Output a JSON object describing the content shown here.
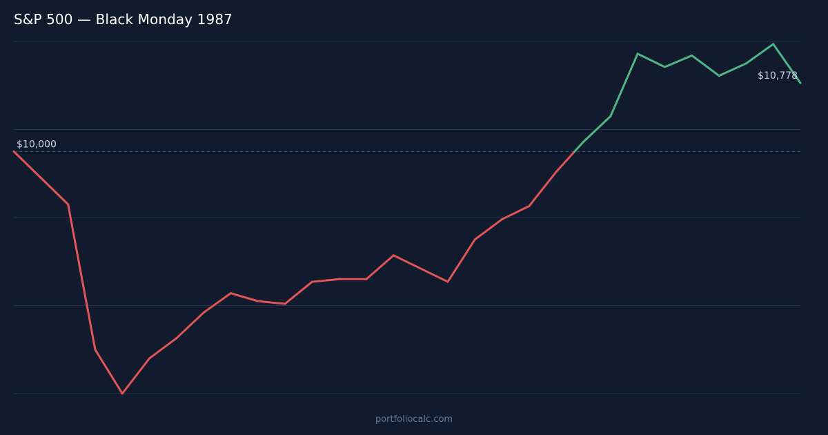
{
  "header": {
    "title": "S&P 500 — Black Monday 1987"
  },
  "footer": {
    "site": "portfoliocalc.com"
  },
  "chart_data": {
    "type": "line",
    "title": "S&P 500 — Black Monday 1987",
    "xlabel": "",
    "ylabel": "",
    "grid": true,
    "ylim": [
      7250,
      11250
    ],
    "baseline": {
      "value": 10000,
      "label": "$10,000",
      "style": "dashed"
    },
    "end_label": "$10,778",
    "colors": {
      "below": "#e05555",
      "above": "#4fb583",
      "baseline": "#2f5f85",
      "grid": "#24324a"
    },
    "series": [
      {
        "values": [
          10000,
          9700,
          9400,
          7750,
          7250,
          7650,
          7880,
          8170,
          8390,
          8300,
          8270,
          8520,
          8550,
          8550,
          8820,
          8670,
          8520,
          9000,
          9230,
          9380,
          9770,
          10110,
          10400,
          11110,
          10960,
          11090,
          10860,
          11000,
          11220,
          10778
        ]
      }
    ]
  }
}
